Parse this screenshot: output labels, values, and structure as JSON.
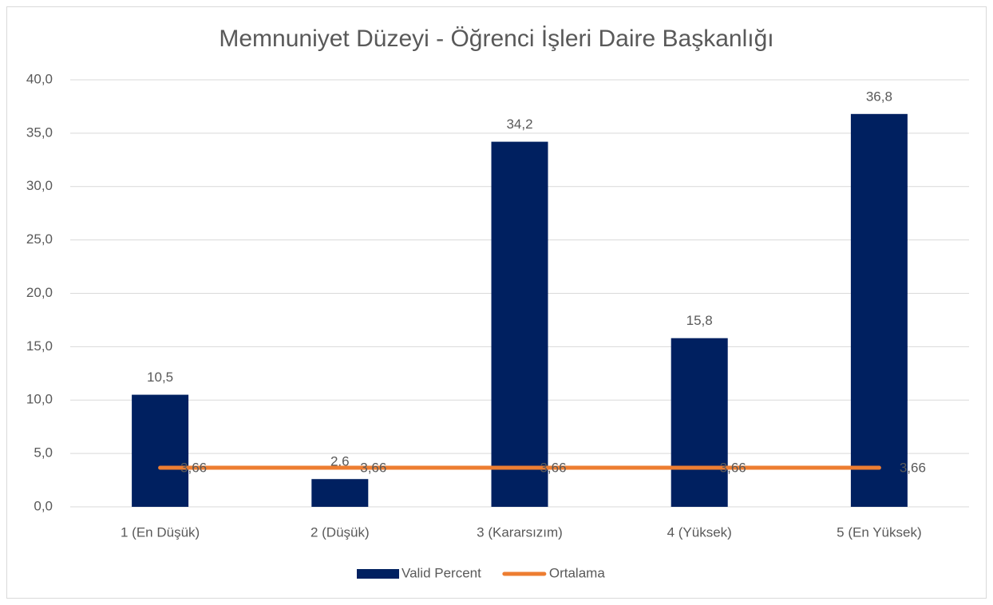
{
  "chart_data": {
    "type": "bar",
    "title": "Memnuniyet Düzeyi - Öğrenci İşleri Daire Başkanlığı",
    "categories": [
      "1 (En Düşük)",
      "2 (Düşük)",
      "3 (Kararsızım)",
      "4 (Yüksek)",
      "5 (En Yüksek)"
    ],
    "series": [
      {
        "name": "Valid Percent",
        "type": "bar",
        "color": "#002060",
        "values": [
          10.5,
          2.6,
          34.2,
          15.8,
          36.8
        ],
        "value_labels": [
          "10,5",
          "2,6",
          "34,2",
          "15,8",
          "36,8"
        ]
      },
      {
        "name": "Ortalama",
        "type": "line",
        "color": "#ed7d31",
        "values": [
          3.66,
          3.66,
          3.66,
          3.66,
          3.66
        ],
        "value_labels": [
          "3,66",
          "3,66",
          "3,66",
          "3,66",
          "3,66"
        ]
      }
    ],
    "ylim": [
      0,
      40
    ],
    "yticks": [
      {
        "value": 0,
        "label": "0,0"
      },
      {
        "value": 5,
        "label": "5,0"
      },
      {
        "value": 10,
        "label": "10,0"
      },
      {
        "value": 15,
        "label": "15,0"
      },
      {
        "value": 20,
        "label": "20,0"
      },
      {
        "value": 25,
        "label": "25,0"
      },
      {
        "value": 30,
        "label": "30,0"
      },
      {
        "value": 35,
        "label": "35,0"
      },
      {
        "value": 40,
        "label": "40,0"
      }
    ],
    "grid": true,
    "legend": "bottom"
  }
}
